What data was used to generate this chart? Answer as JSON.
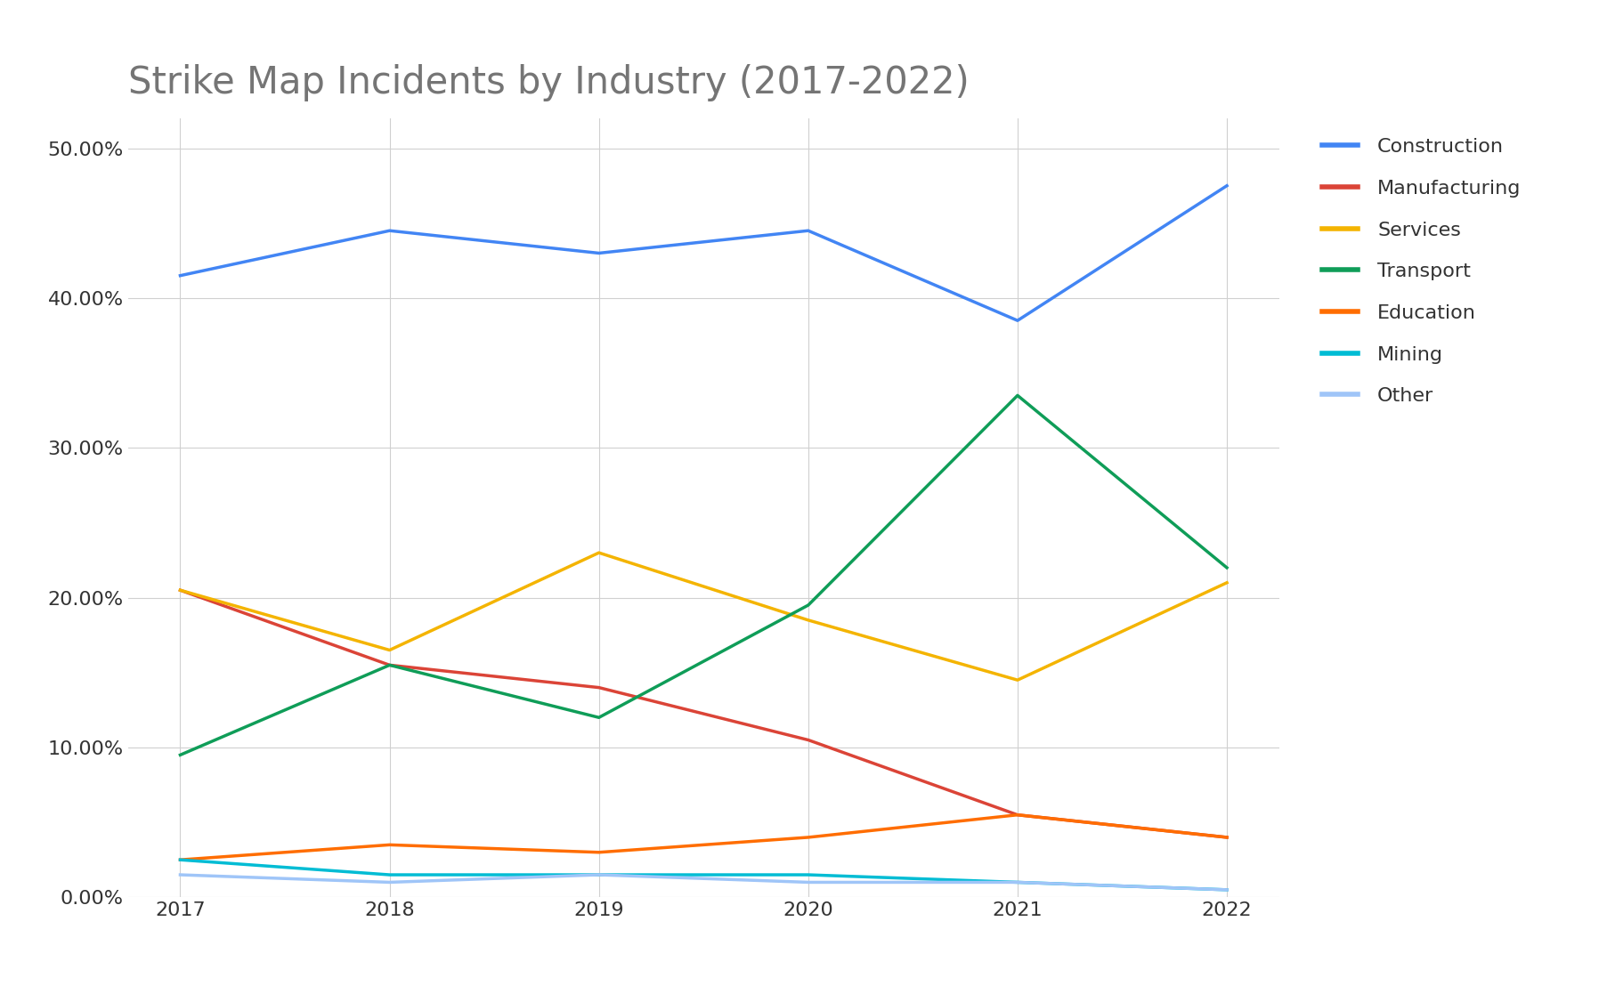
{
  "title": "Strike Map Incidents by Industry (2017-2022)",
  "years": [
    2017,
    2018,
    2019,
    2020,
    2021,
    2022
  ],
  "series": {
    "Construction": {
      "values": [
        0.415,
        0.445,
        0.43,
        0.445,
        0.385,
        0.475
      ],
      "color": "#4285F4"
    },
    "Manufacturing": {
      "values": [
        0.205,
        0.155,
        0.14,
        0.105,
        0.055,
        0.04
      ],
      "color": "#DB4437"
    },
    "Services": {
      "values": [
        0.205,
        0.165,
        0.23,
        0.185,
        0.145,
        0.21
      ],
      "color": "#F4B400"
    },
    "Transport": {
      "values": [
        0.095,
        0.155,
        0.12,
        0.195,
        0.335,
        0.22
      ],
      "color": "#0F9D58"
    },
    "Education": {
      "values": [
        0.025,
        0.035,
        0.03,
        0.04,
        0.055,
        0.04
      ],
      "color": "#FF6D00"
    },
    "Mining": {
      "values": [
        0.025,
        0.015,
        0.015,
        0.015,
        0.01,
        0.005
      ],
      "color": "#00BCD4"
    },
    "Other": {
      "values": [
        0.015,
        0.01,
        0.015,
        0.01,
        0.01,
        0.005
      ],
      "color": "#9FC5F8"
    }
  },
  "ylim": [
    0.0,
    0.52
  ],
  "yticks": [
    0.0,
    0.1,
    0.2,
    0.3,
    0.4,
    0.5
  ],
  "background_color": "#ffffff",
  "grid_color": "#d0d0d0",
  "title_color": "#757575",
  "title_fontsize": 30,
  "legend_fontsize": 16,
  "tick_fontsize": 16,
  "linewidth": 2.5
}
